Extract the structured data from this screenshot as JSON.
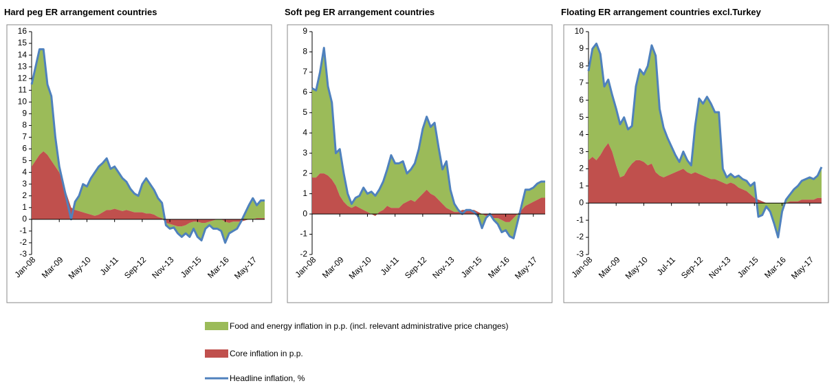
{
  "chart_data": [
    {
      "type": "area",
      "title": "Hard peg ER arrangement countries",
      "categories": [
        "Jan-08",
        null,
        null,
        null,
        null,
        null,
        null,
        "Mar-09",
        null,
        null,
        null,
        null,
        null,
        null,
        "May-10",
        null,
        null,
        null,
        null,
        null,
        null,
        "Jul-11",
        null,
        null,
        null,
        null,
        null,
        null,
        "Sep-12",
        null,
        null,
        null,
        null,
        null,
        null,
        "Nov-13",
        null,
        null,
        null,
        null,
        null,
        null,
        "Jan-15",
        null,
        null,
        null,
        null,
        null,
        null,
        "Mar-16",
        null,
        null,
        null,
        null,
        null,
        null,
        "May-17",
        null,
        null,
        null
      ],
      "series": [
        {
          "name": "Food and energy inflation in p.p. (incl. relevant administrative price changes)",
          "color": "#9bbb59",
          "values": [
            7,
            8,
            9,
            8.7,
            6,
            5.5,
            2.5,
            0.5,
            0,
            -0.5,
            -1,
            0.7,
            1.3,
            2.4,
            2.3,
            3.1,
            3.7,
            4.1,
            4.2,
            4.4,
            3.5,
            3.6,
            3.2,
            2.8,
            2.4,
            1.9,
            1.6,
            1.4,
            2.4,
            3,
            2.5,
            2.1,
            1.6,
            1.3,
            -0.2,
            -0.4,
            -0.2,
            -0.6,
            -0.9,
            -0.7,
            -1.2,
            -0.6,
            -1.3,
            -1.5,
            -0.5,
            -0.3,
            -0.7,
            -0.8,
            -1,
            -1.8,
            -0.9,
            -0.8,
            -0.6,
            0,
            0.6,
            1.2,
            1.8,
            1.1,
            1.5,
            1.5
          ]
        },
        {
          "name": "Core inflation in p.p.",
          "color": "#c0504d",
          "values": [
            4.5,
            5,
            5.5,
            5.8,
            5.5,
            5,
            4.5,
            4,
            3,
            2,
            1,
            0.8,
            0.7,
            0.6,
            0.5,
            0.4,
            0.3,
            0.4,
            0.6,
            0.8,
            0.8,
            0.9,
            0.8,
            0.7,
            0.8,
            0.7,
            0.6,
            0.6,
            0.6,
            0.5,
            0.5,
            0.4,
            0.2,
            0.1,
            -0.3,
            -0.4,
            -0.5,
            -0.6,
            -0.6,
            -0.5,
            -0.3,
            -0.2,
            -0.2,
            -0.3,
            -0.3,
            -0.2,
            -0.1,
            0,
            0,
            -0.2,
            -0.3,
            -0.2,
            -0.2,
            -0.2,
            -0.1,
            0,
            0,
            0.1,
            0.1,
            0.1
          ]
        },
        {
          "name": "Headline inflation, %",
          "color": "#4f81bd",
          "values": [
            11.5,
            13,
            14.5,
            14.5,
            11.5,
            10.5,
            7,
            4.5,
            3,
            1.5,
            0,
            1.5,
            2,
            3,
            2.8,
            3.5,
            4,
            4.5,
            4.8,
            5.2,
            4.3,
            4.5,
            4,
            3.5,
            3.2,
            2.6,
            2.2,
            2,
            3,
            3.5,
            3,
            2.5,
            1.8,
            1.4,
            -0.5,
            -0.8,
            -0.7,
            -1.2,
            -1.5,
            -1.2,
            -1.5,
            -0.8,
            -1.5,
            -1.8,
            -0.8,
            -0.5,
            -0.8,
            -0.8,
            -1,
            -2,
            -1.2,
            -1,
            -0.8,
            -0.2,
            0.5,
            1.2,
            1.8,
            1.2,
            1.6,
            1.6
          ]
        }
      ],
      "ylim": [
        -3,
        16
      ],
      "yticks": [
        -3,
        -2,
        -1,
        0,
        1,
        2,
        3,
        4,
        5,
        6,
        7,
        8,
        9,
        10,
        11,
        12,
        13,
        14,
        15,
        16
      ]
    },
    {
      "type": "area",
      "title": "Soft peg ER arrangement countries",
      "categories": [
        "Jan-08",
        null,
        null,
        null,
        null,
        null,
        null,
        "Mar-09",
        null,
        null,
        null,
        null,
        null,
        null,
        "May-10",
        null,
        null,
        null,
        null,
        null,
        null,
        "Jul-11",
        null,
        null,
        null,
        null,
        null,
        null,
        "Sep-12",
        null,
        null,
        null,
        null,
        null,
        null,
        "Nov-13",
        null,
        null,
        null,
        null,
        null,
        null,
        "Jan-15",
        null,
        null,
        null,
        null,
        null,
        null,
        "Mar-16",
        null,
        null,
        null,
        null,
        null,
        null,
        "May-17",
        null,
        null,
        null
      ],
      "series": [
        {
          "color": "#9bbb59",
          "values": [
            4.4,
            4.3,
            5,
            6.2,
            4.4,
            3.8,
            1.6,
            2.3,
            1.4,
            0.6,
            0.2,
            0.4,
            0.6,
            1.1,
            0.9,
            1.1,
            1,
            1.1,
            1.4,
            1.8,
            2.6,
            2.2,
            2.2,
            2.1,
            1.4,
            1.5,
            1.9,
            2.4,
            3.2,
            3.6,
            3.3,
            3.6,
            2.6,
            1.7,
            2.3,
            1,
            0.4,
            0.1,
            -0.2,
            0,
            0,
            -0.1,
            -0.2,
            -0.7,
            -0.1,
            0.1,
            -0.1,
            -0.3,
            -0.6,
            -0.4,
            -0.7,
            -1,
            -0.4,
            0.2,
            0.8,
            0.7,
            0.7,
            0.8,
            0.8,
            0.8
          ]
        },
        {
          "color": "#c0504d",
          "values": [
            1.8,
            1.8,
            2,
            2,
            1.9,
            1.7,
            1.4,
            0.9,
            0.6,
            0.4,
            0.3,
            0.4,
            0.3,
            0.2,
            0.1,
            0,
            -0.1,
            0.1,
            0.2,
            0.4,
            0.3,
            0.3,
            0.3,
            0.5,
            0.6,
            0.7,
            0.6,
            0.8,
            1,
            1.2,
            1,
            0.9,
            0.7,
            0.5,
            0.3,
            0.2,
            0.1,
            0.1,
            0.2,
            0.2,
            0.2,
            0.2,
            0.1,
            0,
            -0.1,
            -0.1,
            -0.2,
            -0.2,
            -0.3,
            -0.4,
            -0.4,
            -0.2,
            0,
            0.2,
            0.4,
            0.5,
            0.6,
            0.7,
            0.8,
            0.8
          ]
        },
        {
          "color": "#4f81bd",
          "values": [
            6.2,
            6.1,
            7,
            8.2,
            6.3,
            5.5,
            3,
            3.2,
            2,
            1,
            0.5,
            0.8,
            0.9,
            1.3,
            1,
            1.1,
            0.9,
            1.2,
            1.6,
            2.2,
            2.9,
            2.5,
            2.5,
            2.6,
            2,
            2.2,
            2.5,
            3.2,
            4.2,
            4.8,
            4.3,
            4.5,
            3.3,
            2.2,
            2.6,
            1.2,
            0.5,
            0.2,
            0,
            0.2,
            0.2,
            0.1,
            -0.1,
            -0.7,
            -0.2,
            0,
            -0.3,
            -0.5,
            -0.9,
            -0.8,
            -1.1,
            -1.2,
            -0.4,
            0.4,
            1.2,
            1.2,
            1.3,
            1.5,
            1.6,
            1.6
          ]
        }
      ],
      "ylim": [
        -2,
        9
      ],
      "yticks": [
        -2,
        -1,
        0,
        1,
        2,
        3,
        4,
        5,
        6,
        7,
        8,
        9
      ]
    },
    {
      "type": "area",
      "title": "Floating ER arrangement countries excl.Turkey",
      "categories": [
        "Jan-08",
        null,
        null,
        null,
        null,
        null,
        null,
        "Mar-09",
        null,
        null,
        null,
        null,
        null,
        null,
        "May-10",
        null,
        null,
        null,
        null,
        null,
        null,
        "Jul-11",
        null,
        null,
        null,
        null,
        null,
        null,
        "Sep-12",
        null,
        null,
        null,
        null,
        null,
        null,
        "Nov-13",
        null,
        null,
        null,
        null,
        null,
        null,
        "Jan-15",
        null,
        null,
        null,
        null,
        null,
        null,
        "Mar-16",
        null,
        null,
        null,
        null,
        null,
        null,
        "May-17",
        null,
        null,
        null
      ],
      "series": [
        {
          "color": "#9bbb59",
          "values": [
            5.2,
            6.3,
            6.8,
            5.9,
            3.6,
            3.7,
            3.3,
            3.3,
            3.1,
            3.4,
            2.3,
            2.2,
            4.3,
            5.3,
            5.1,
            5.8,
            6.9,
            6.8,
            3.9,
            2.9,
            2.2,
            1.6,
            1,
            0.5,
            1,
            0.7,
            0.5,
            2.7,
            4.4,
            4.2,
            4.7,
            4.4,
            3.9,
            4,
            0.8,
            0.4,
            0.5,
            0.4,
            0.7,
            0.6,
            0.6,
            0.5,
            0.9,
            -1,
            -0.8,
            -0.2,
            -0.5,
            -1.2,
            -2,
            -0.5,
            0.2,
            0.4,
            0.7,
            0.9,
            1.1,
            1.2,
            1.3,
            1.2,
            1.3,
            1.8
          ]
        },
        {
          "color": "#c0504d",
          "values": [
            2.5,
            2.7,
            2.5,
            2.8,
            3.2,
            3.5,
            3,
            2.2,
            1.5,
            1.6,
            2,
            2.3,
            2.5,
            2.5,
            2.4,
            2.2,
            2.3,
            1.8,
            1.6,
            1.5,
            1.6,
            1.7,
            1.8,
            1.9,
            2,
            1.8,
            1.7,
            1.8,
            1.7,
            1.6,
            1.5,
            1.4,
            1.4,
            1.3,
            1.2,
            1.1,
            1.2,
            1.1,
            0.9,
            0.8,
            0.7,
            0.5,
            0.3,
            0.2,
            0.1,
            0,
            0,
            0,
            0,
            0,
            0,
            0.1,
            0.1,
            0.1,
            0.2,
            0.2,
            0.2,
            0.2,
            0.3,
            0.3
          ]
        },
        {
          "color": "#4f81bd",
          "values": [
            7.7,
            9,
            9.3,
            8.7,
            6.8,
            7.2,
            6.3,
            5.5,
            4.6,
            5,
            4.3,
            4.5,
            6.8,
            7.8,
            7.5,
            8,
            9.2,
            8.6,
            5.5,
            4.4,
            3.8,
            3.3,
            2.8,
            2.4,
            3,
            2.5,
            2.2,
            4.5,
            6.1,
            5.8,
            6.2,
            5.8,
            5.3,
            5.3,
            2,
            1.5,
            1.7,
            1.5,
            1.6,
            1.4,
            1.3,
            1,
            1.2,
            -0.8,
            -0.7,
            -0.2,
            -0.5,
            -1.2,
            -2,
            -0.5,
            0.2,
            0.5,
            0.8,
            1,
            1.3,
            1.4,
            1.5,
            1.4,
            1.6,
            2.1
          ]
        }
      ],
      "ylim": [
        -3,
        10
      ],
      "yticks": [
        -3,
        -2,
        -1,
        0,
        1,
        2,
        3,
        4,
        5,
        6,
        7,
        8,
        9,
        10
      ]
    }
  ]
}
